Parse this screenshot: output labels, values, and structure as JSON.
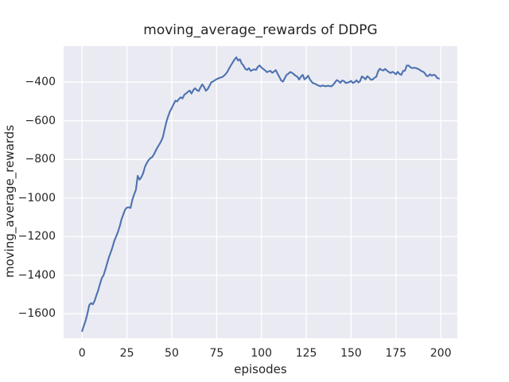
{
  "title": "moving_average_rewards of DDPG",
  "axes": {
    "xlabel": "episodes",
    "ylabel": "moving_average_rewards",
    "x_ticks": [
      0,
      25,
      50,
      75,
      100,
      125,
      150,
      175,
      200
    ],
    "y_ticks": [
      -400,
      -600,
      -800,
      -1000,
      -1200,
      -1400,
      -1600
    ],
    "xlim": [
      -10.3,
      209.2
    ],
    "ylim": [
      -1727,
      -213
    ],
    "grid": true
  },
  "colors": {
    "line": "#4c72b0",
    "axes_background": "#eaeaf2",
    "grid": "#ffffff",
    "text": "#262626",
    "figure_background": "#ffffff"
  },
  "chart_data": {
    "type": "line",
    "title": "moving_average_rewards of DDPG",
    "xlabel": "episodes",
    "ylabel": "moving_average_rewards",
    "legend": null,
    "x_start": 0,
    "x_step": 1,
    "xlim": [
      -10.3,
      209.2
    ],
    "ylim": [
      -1727,
      -213
    ],
    "series": [
      {
        "name": "moving_average_rewards",
        "color": "#4c72b0",
        "values": [
          -1690,
          -1662,
          -1635,
          -1598,
          -1555,
          -1545,
          -1551,
          -1533,
          -1504,
          -1478,
          -1445,
          -1415,
          -1400,
          -1370,
          -1338,
          -1306,
          -1281,
          -1254,
          -1221,
          -1199,
          -1175,
          -1146,
          -1110,
          -1085,
          -1060,
          -1050,
          -1048,
          -1052,
          -1010,
          -982,
          -958,
          -885,
          -905,
          -893,
          -873,
          -840,
          -820,
          -805,
          -794,
          -789,
          -775,
          -756,
          -738,
          -723,
          -707,
          -685,
          -645,
          -605,
          -576,
          -551,
          -534,
          -514,
          -496,
          -499,
          -487,
          -478,
          -484,
          -465,
          -458,
          -450,
          -443,
          -459,
          -441,
          -431,
          -441,
          -446,
          -427,
          -411,
          -425,
          -444,
          -436,
          -419,
          -401,
          -396,
          -390,
          -384,
          -380,
          -376,
          -374,
          -367,
          -358,
          -346,
          -328,
          -312,
          -297,
          -282,
          -271,
          -288,
          -281,
          -303,
          -314,
          -331,
          -336,
          -327,
          -341,
          -337,
          -333,
          -336,
          -320,
          -313,
          -324,
          -331,
          -338,
          -348,
          -344,
          -341,
          -351,
          -345,
          -337,
          -356,
          -373,
          -391,
          -397,
          -379,
          -362,
          -356,
          -347,
          -351,
          -358,
          -366,
          -371,
          -386,
          -371,
          -362,
          -385,
          -378,
          -366,
          -385,
          -398,
          -406,
          -408,
          -414,
          -418,
          -421,
          -417,
          -419,
          -421,
          -418,
          -420,
          -421,
          -413,
          -401,
          -389,
          -394,
          -403,
          -391,
          -394,
          -404,
          -402,
          -399,
          -393,
          -404,
          -399,
          -390,
          -401,
          -394,
          -370,
          -376,
          -385,
          -369,
          -376,
          -387,
          -386,
          -377,
          -372,
          -344,
          -330,
          -336,
          -339,
          -331,
          -340,
          -347,
          -352,
          -346,
          -351,
          -359,
          -346,
          -357,
          -362,
          -341,
          -340,
          -314,
          -313,
          -322,
          -327,
          -325,
          -326,
          -330,
          -334,
          -341,
          -345,
          -352,
          -367,
          -368,
          -359,
          -366,
          -361,
          -365,
          -378,
          -381
        ]
      }
    ]
  }
}
